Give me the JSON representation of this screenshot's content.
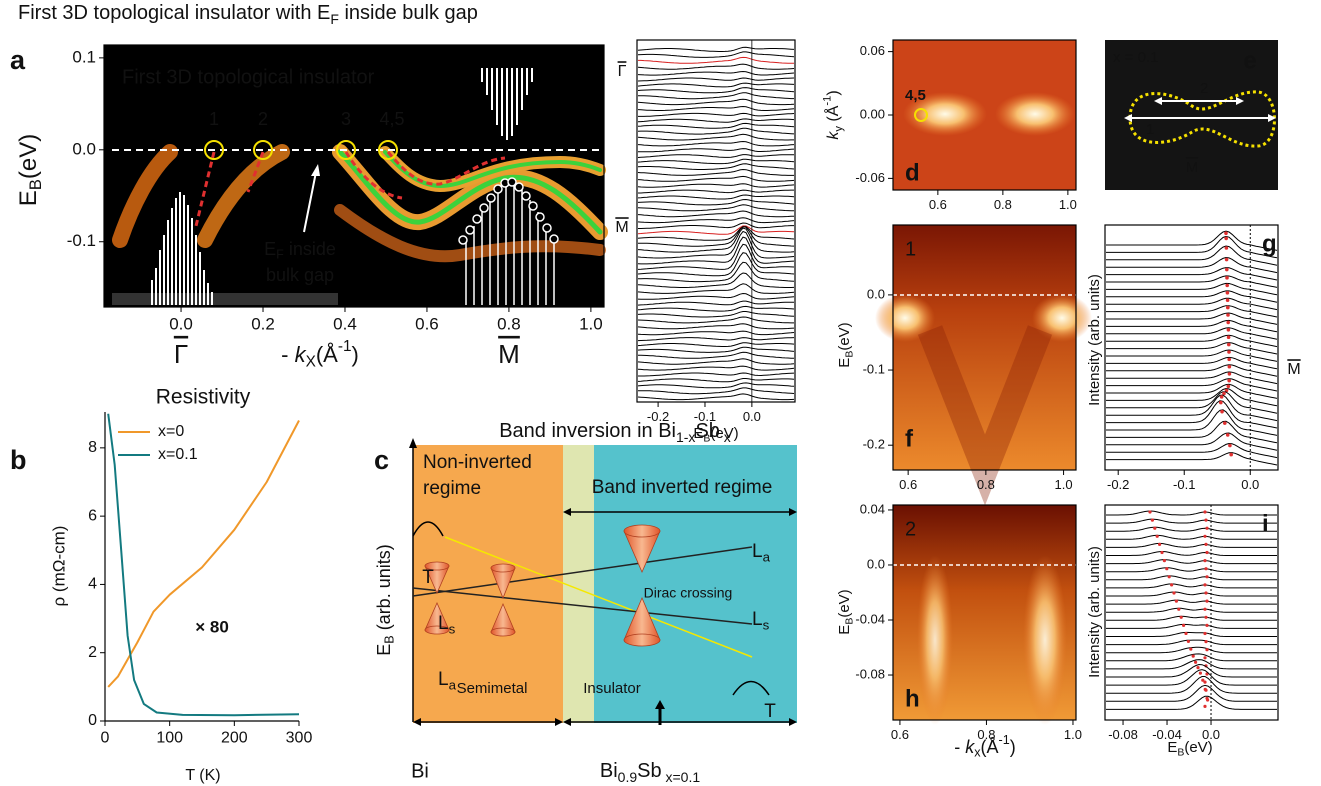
{
  "title": [
    "First 3D topological insulator with E",
    "F",
    " inside bulk gap"
  ],
  "panels": {
    "a": {
      "label": "a",
      "inset_title": "First 3D topological insulator",
      "points": [
        "1",
        "2",
        "3",
        "4,5"
      ],
      "annotation": [
        [
          "E",
          "F",
          " inside"
        ],
        "bulk gap"
      ],
      "symmetry_points": [
        "Γ",
        "M"
      ],
      "xlabel": [
        "- ",
        "k",
        "X",
        "(Å",
        "-1",
        ")"
      ],
      "ylabel": [
        "E",
        "B",
        "(eV)"
      ],
      "xlim": [
        -0.188,
        1.032
      ],
      "ylim": [
        -0.171,
        0.114
      ],
      "xticks": [
        {
          "value": 0,
          "label": "0.0"
        },
        0.2,
        0.4,
        0.6,
        0.8,
        {
          "value": 1,
          "label": "1.0"
        }
      ],
      "yticks": [
        0.1,
        {
          "value": 0,
          "label": "0.0"
        },
        -0.1
      ]
    },
    "edc": {
      "symmetry_points": [
        "Γ",
        "M"
      ],
      "xlabel": [
        "E",
        "B",
        "(eV)"
      ],
      "xlim": [
        -0.245,
        0.092
      ],
      "xticks": [
        -0.2,
        -0.1,
        {
          "value": 0,
          "label": "0.0"
        }
      ]
    },
    "c": {
      "label": "c",
      "title": [
        "Band inversion in Bi",
        "1-x",
        "Sb",
        " x"
      ],
      "regime_left": [
        "Non-inverted",
        "regime"
      ],
      "regime_right": "Band inverted regime",
      "ylabel": [
        "E",
        "B",
        " (arb. units)"
      ],
      "band_T_left": "T",
      "band_Ls_left": [
        "L",
        "s"
      ],
      "band_La_left": [
        "L",
        "a"
      ],
      "band_La_right": [
        "L",
        "a"
      ],
      "band_Ls_right": [
        "L",
        "s"
      ],
      "band_T_right": "T",
      "dirac": "Dirac crossing",
      "phases": [
        "Semimetal",
        "Insulator"
      ],
      "compound_left": "Bi",
      "compound_right": [
        "Bi",
        "0.9",
        "Sb",
        " x=0.1"
      ]
    },
    "d": {
      "label": "d",
      "point": "4,5",
      "ylabel": [
        "k",
        "y",
        " (Å",
        "-1",
        ")"
      ],
      "xlim": [
        0.462,
        1.025
      ],
      "ylim": [
        -0.071,
        0.071
      ],
      "xticks": [
        0.6,
        0.8,
        {
          "value": 1,
          "label": "1.0"
        }
      ],
      "yticks": [
        0.06,
        {
          "value": 0,
          "label": "0.00"
        },
        -0.06
      ]
    },
    "e": {
      "label": "e",
      "composition": "x = 0.1",
      "cuts": [
        "2",
        "1"
      ],
      "symmetry_point": "M"
    },
    "f": {
      "label": "f",
      "cut": "1",
      "ylabel": [
        "E",
        "B",
        "(eV)"
      ],
      "xlim": [
        0.561,
        1.032
      ],
      "ylim": [
        -0.233,
        0.093
      ],
      "xticks": [
        0.6,
        0.8,
        {
          "value": 1,
          "label": "1.0"
        }
      ],
      "yticks": [
        {
          "value": 0,
          "label": "0.0"
        },
        -0.1,
        -0.2
      ]
    },
    "g": {
      "label": "g",
      "ylabel": "Intensity (arb. units)",
      "symmetry_point": "M",
      "xlim": [
        -0.22,
        0.042
      ],
      "xticks": [
        -0.2,
        -0.1,
        {
          "value": 0,
          "label": "0.0"
        }
      ]
    },
    "h": {
      "label": "h",
      "cut": "2",
      "ylabel": [
        "E",
        "B",
        "(eV)"
      ],
      "xlabel": [
        "- ",
        "k",
        "x",
        "(Å",
        "-1",
        ")"
      ],
      "xlim": [
        0.584,
        1.007
      ],
      "ylim": [
        -0.1127,
        0.0436
      ],
      "xticks": [
        0.6,
        0.8,
        {
          "value": 1,
          "label": "1.0"
        }
      ],
      "yticks": [
        0.04,
        {
          "value": 0,
          "label": "0.0"
        },
        -0.04,
        -0.08
      ]
    },
    "i": {
      "label": "i",
      "ylabel": "Intensity (arb. units)",
      "xlabel": [
        "E",
        "B",
        "(eV)"
      ],
      "xlim": [
        -0.0964,
        0.0609
      ],
      "xticks": [
        -0.08,
        -0.04,
        {
          "value": 0,
          "label": "0.0"
        }
      ]
    }
  },
  "chart_data": {
    "type": "line",
    "panel_label": "b",
    "title": "Resistivity",
    "xlabel": "T (K)",
    "ylabel": "ρ (mΩ-cm)",
    "annotation": "× 80",
    "legend": "upper-left",
    "xlim": [
      0,
      300
    ],
    "ylim": [
      0,
      9.05
    ],
    "xticks": [
      0,
      100,
      200,
      300
    ],
    "yticks": [
      0,
      2,
      4,
      6,
      8
    ],
    "series": [
      {
        "name": "x=0",
        "color": "#f0982a",
        "x": [
          5,
          20,
          35,
          50,
          75,
          100,
          150,
          200,
          250,
          300
        ],
        "values": [
          1.0,
          1.3,
          1.8,
          2.3,
          3.2,
          3.7,
          4.5,
          5.6,
          7.0,
          8.8
        ]
      },
      {
        "name": "x=0.1",
        "color": "#137a80",
        "x": [
          5,
          15,
          25,
          35,
          45,
          60,
          80,
          120,
          200,
          300
        ],
        "values": [
          9.0,
          7.5,
          5.0,
          2.5,
          1.2,
          0.5,
          0.25,
          0.18,
          0.17,
          0.2
        ]
      }
    ]
  }
}
